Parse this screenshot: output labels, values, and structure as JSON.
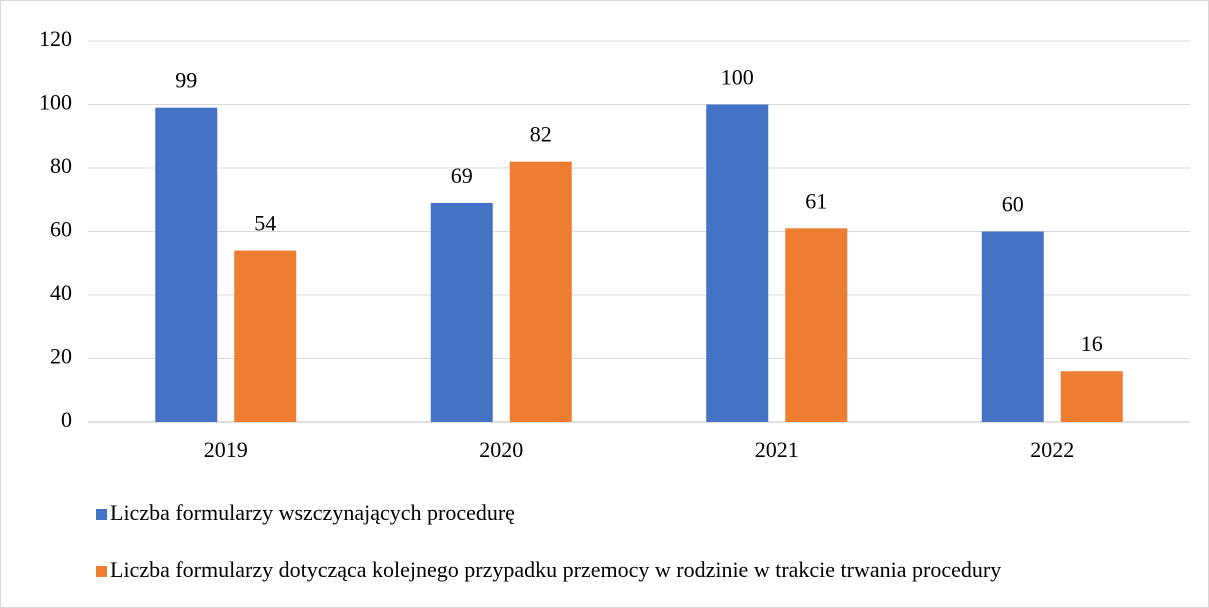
{
  "chart_data": {
    "type": "bar",
    "categories": [
      "2019",
      "2020",
      "2021",
      "2022"
    ],
    "series": [
      {
        "name": "Liczba formularzy wszczynających procedurę",
        "color": "#4472c4",
        "values": [
          99,
          69,
          100,
          60
        ]
      },
      {
        "name": "Liczba formularzy dotycząca kolejnego przypadku przemocy w rodzinie w trakcie trwania procedury",
        "color": "#ed7d31",
        "values": [
          54,
          82,
          61,
          16
        ]
      }
    ],
    "ylim": [
      0,
      120
    ],
    "yticks": [
      0,
      20,
      40,
      60,
      80,
      100,
      120
    ],
    "grid": true,
    "legend": "bottom",
    "data_labels": true
  }
}
